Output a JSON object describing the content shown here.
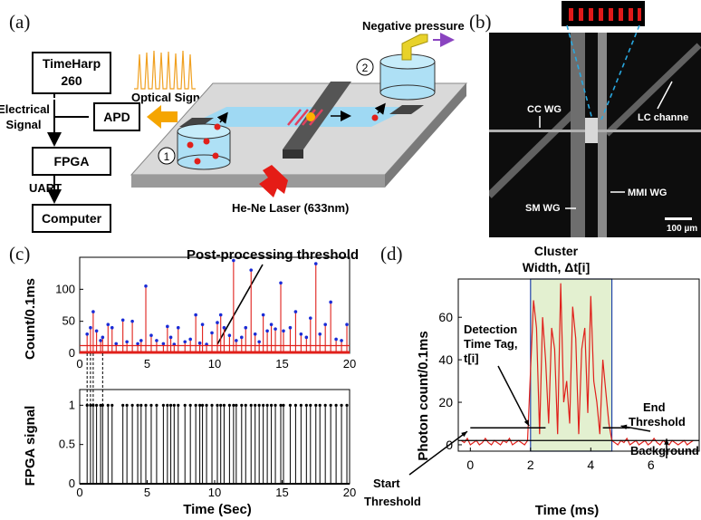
{
  "panel_a": {
    "label": "(a)",
    "blocks": {
      "timeharp": [
        "TimeHarp",
        "260"
      ],
      "apd": "APD",
      "fpga": "FPGA",
      "computer": "Computer"
    },
    "edge_labels": {
      "electrical_signal": [
        "Electrical",
        "Signal"
      ],
      "uart": "UART",
      "optical_signal": "Optical Signal"
    },
    "chip_labels": {
      "negative_pressure": "Negative pressure",
      "laser": "He-Ne Laser (633nm)",
      "inlet_marker": "1",
      "outlet_marker": "2"
    }
  },
  "panel_b": {
    "label": "(b)",
    "labels": {
      "cc_wg": "CC WG",
      "lc_channel": "LC channe",
      "mmi_wg": "MMI WG",
      "sm_wg": "SM WG",
      "scale": "100 µm"
    }
  },
  "panel_c": {
    "label": "(c)",
    "annotation": "Post-processing threshold",
    "top_ylabel": "Count/0.1ms",
    "bottom_ylabel": "FPGA signal",
    "xlabel": "Time (Sec)",
    "x_ticks": [
      "0",
      "5",
      "10",
      "15",
      "20"
    ],
    "top_yticks": [
      "0",
      "50",
      "100"
    ],
    "bottom_yticks": [
      "0",
      "0.5",
      "1"
    ]
  },
  "panel_d": {
    "label": "(d)",
    "annotations": {
      "cluster": [
        "Cluster",
        "Width, Δt[i]"
      ],
      "detection": [
        "Detection",
        "Time Tag,",
        "t[i]"
      ],
      "end_threshold": [
        "End",
        "Threshold"
      ],
      "background": "Background",
      "start_threshold": [
        "Start",
        "Threshold"
      ]
    },
    "ylabel": "Photon count/0.1ms",
    "xlabel": "Time (ms)",
    "x_ticks": [
      "0",
      "2",
      "4",
      "6"
    ],
    "y_ticks": [
      "0",
      "20",
      "40",
      "60"
    ]
  },
  "colors": {
    "red_trace": "#e0201b",
    "blue_marker": "#1a2bd6",
    "cluster_fill": "#e3f0d0",
    "cluster_border": "#2244aa",
    "arrow_orange": "#f5a500",
    "laser_red": "#e51c16",
    "fluid_blue": "#9fd9f3",
    "dashed_cyan": "#29a8e0"
  },
  "chart_data": [
    {
      "type": "stem",
      "title": "",
      "xlabel": "Time (Sec)",
      "ylabel": "Count/0.1ms",
      "xlim": [
        0,
        20
      ],
      "ylim": [
        0,
        150
      ],
      "threshold": 12,
      "x": [
        0.55,
        0.8,
        1.0,
        1.25,
        1.55,
        1.7,
        2.1,
        2.4,
        2.7,
        3.2,
        3.5,
        3.9,
        4.3,
        4.55,
        4.9,
        5.3,
        5.7,
        6.2,
        6.5,
        6.75,
        7.0,
        7.3,
        7.8,
        8.2,
        8.6,
        8.9,
        9.1,
        9.4,
        9.8,
        10.2,
        10.45,
        10.7,
        11.1,
        11.4,
        11.6,
        12.0,
        12.3,
        12.7,
        13.0,
        13.3,
        13.6,
        13.9,
        14.2,
        14.5,
        14.9,
        15.1,
        15.6,
        16.0,
        16.4,
        16.8,
        17.1,
        17.5,
        17.8,
        18.2,
        18.6,
        19.0,
        19.4,
        19.8
      ],
      "y": [
        30,
        40,
        65,
        35,
        20,
        25,
        45,
        40,
        15,
        52,
        18,
        50,
        15,
        20,
        105,
        28,
        20,
        15,
        42,
        25,
        14,
        40,
        18,
        22,
        60,
        16,
        45,
        14,
        32,
        48,
        60,
        40,
        28,
        145,
        20,
        25,
        40,
        130,
        30,
        18,
        60,
        35,
        45,
        38,
        110,
        35,
        40,
        65,
        30,
        25,
        55,
        140,
        30,
        45,
        80,
        22,
        20,
        45
      ]
    },
    {
      "type": "stem",
      "title": "",
      "xlabel": "Time (Sec)",
      "ylabel": "FPGA signal",
      "xlim": [
        0,
        20
      ],
      "ylim": [
        0,
        1.2
      ],
      "x": [
        0.55,
        0.8,
        1.0,
        1.25,
        1.55,
        1.7,
        2.1,
        2.4,
        3.2,
        3.5,
        3.9,
        4.3,
        4.55,
        4.9,
        5.3,
        5.7,
        6.2,
        6.5,
        6.75,
        7.0,
        7.3,
        7.8,
        8.2,
        8.6,
        8.9,
        9.1,
        9.4,
        9.8,
        10.2,
        10.45,
        10.7,
        11.1,
        11.4,
        11.6,
        12.0,
        12.3,
        12.7,
        13.0,
        13.3,
        13.6,
        13.9,
        14.2,
        14.5,
        14.9,
        15.1,
        15.6,
        16.0,
        16.4,
        16.8,
        17.1,
        17.5,
        17.8,
        18.2,
        18.6,
        19.0,
        19.4,
        19.8
      ],
      "y": [
        1,
        1,
        1,
        1,
        1,
        1,
        1,
        1,
        1,
        1,
        1,
        1,
        1,
        1,
        1,
        1,
        1,
        1,
        1,
        1,
        1,
        1,
        1,
        1,
        1,
        1,
        1,
        1,
        1,
        1,
        1,
        1,
        1,
        1,
        1,
        1,
        1,
        1,
        1,
        1,
        1,
        1,
        1,
        1,
        1,
        1,
        1,
        1,
        1,
        1,
        1,
        1,
        1,
        1,
        1,
        1,
        1
      ]
    },
    {
      "type": "line",
      "title": "",
      "xlabel": "Time (ms)",
      "ylabel": "Photon count/0.1ms",
      "xlim": [
        -0.4,
        7.6
      ],
      "ylim": [
        -3,
        78
      ],
      "cluster_start": 2.0,
      "cluster_end": 4.7,
      "x": [
        -0.3,
        -0.2,
        -0.1,
        0.0,
        0.1,
        0.2,
        0.3,
        0.4,
        0.5,
        0.6,
        0.7,
        0.8,
        0.9,
        1.0,
        1.1,
        1.2,
        1.3,
        1.4,
        1.5,
        1.6,
        1.7,
        1.8,
        1.9,
        2.0,
        2.1,
        2.2,
        2.3,
        2.4,
        2.5,
        2.6,
        2.7,
        2.8,
        2.9,
        3.0,
        3.1,
        3.2,
        3.3,
        3.4,
        3.5,
        3.6,
        3.7,
        3.8,
        3.9,
        4.0,
        4.1,
        4.2,
        4.3,
        4.4,
        4.5,
        4.6,
        4.7,
        4.8,
        4.9,
        5.0,
        5.1,
        5.2,
        5.3,
        5.4,
        5.5,
        5.6,
        5.7,
        5.8,
        5.9,
        6.0,
        6.1,
        6.2,
        6.3,
        6.4,
        6.5,
        6.6,
        6.7,
        6.8,
        6.9,
        7.0,
        7.1,
        7.2,
        7.3,
        7.4
      ],
      "y": [
        2,
        1,
        3,
        0,
        1,
        2,
        0,
        1,
        3,
        1,
        0,
        2,
        1,
        0,
        2,
        1,
        3,
        0,
        1,
        2,
        1,
        0,
        2,
        35,
        68,
        55,
        5,
        60,
        40,
        10,
        55,
        45,
        5,
        76,
        20,
        30,
        10,
        65,
        50,
        5,
        45,
        55,
        15,
        70,
        30,
        20,
        5,
        40,
        25,
        10,
        2,
        1,
        0,
        2,
        1,
        3,
        0,
        1,
        2,
        0,
        1,
        2,
        0,
        1,
        3,
        1,
        0,
        2,
        1,
        0,
        2,
        1,
        0,
        1,
        2,
        0,
        1,
        2
      ]
    }
  ]
}
